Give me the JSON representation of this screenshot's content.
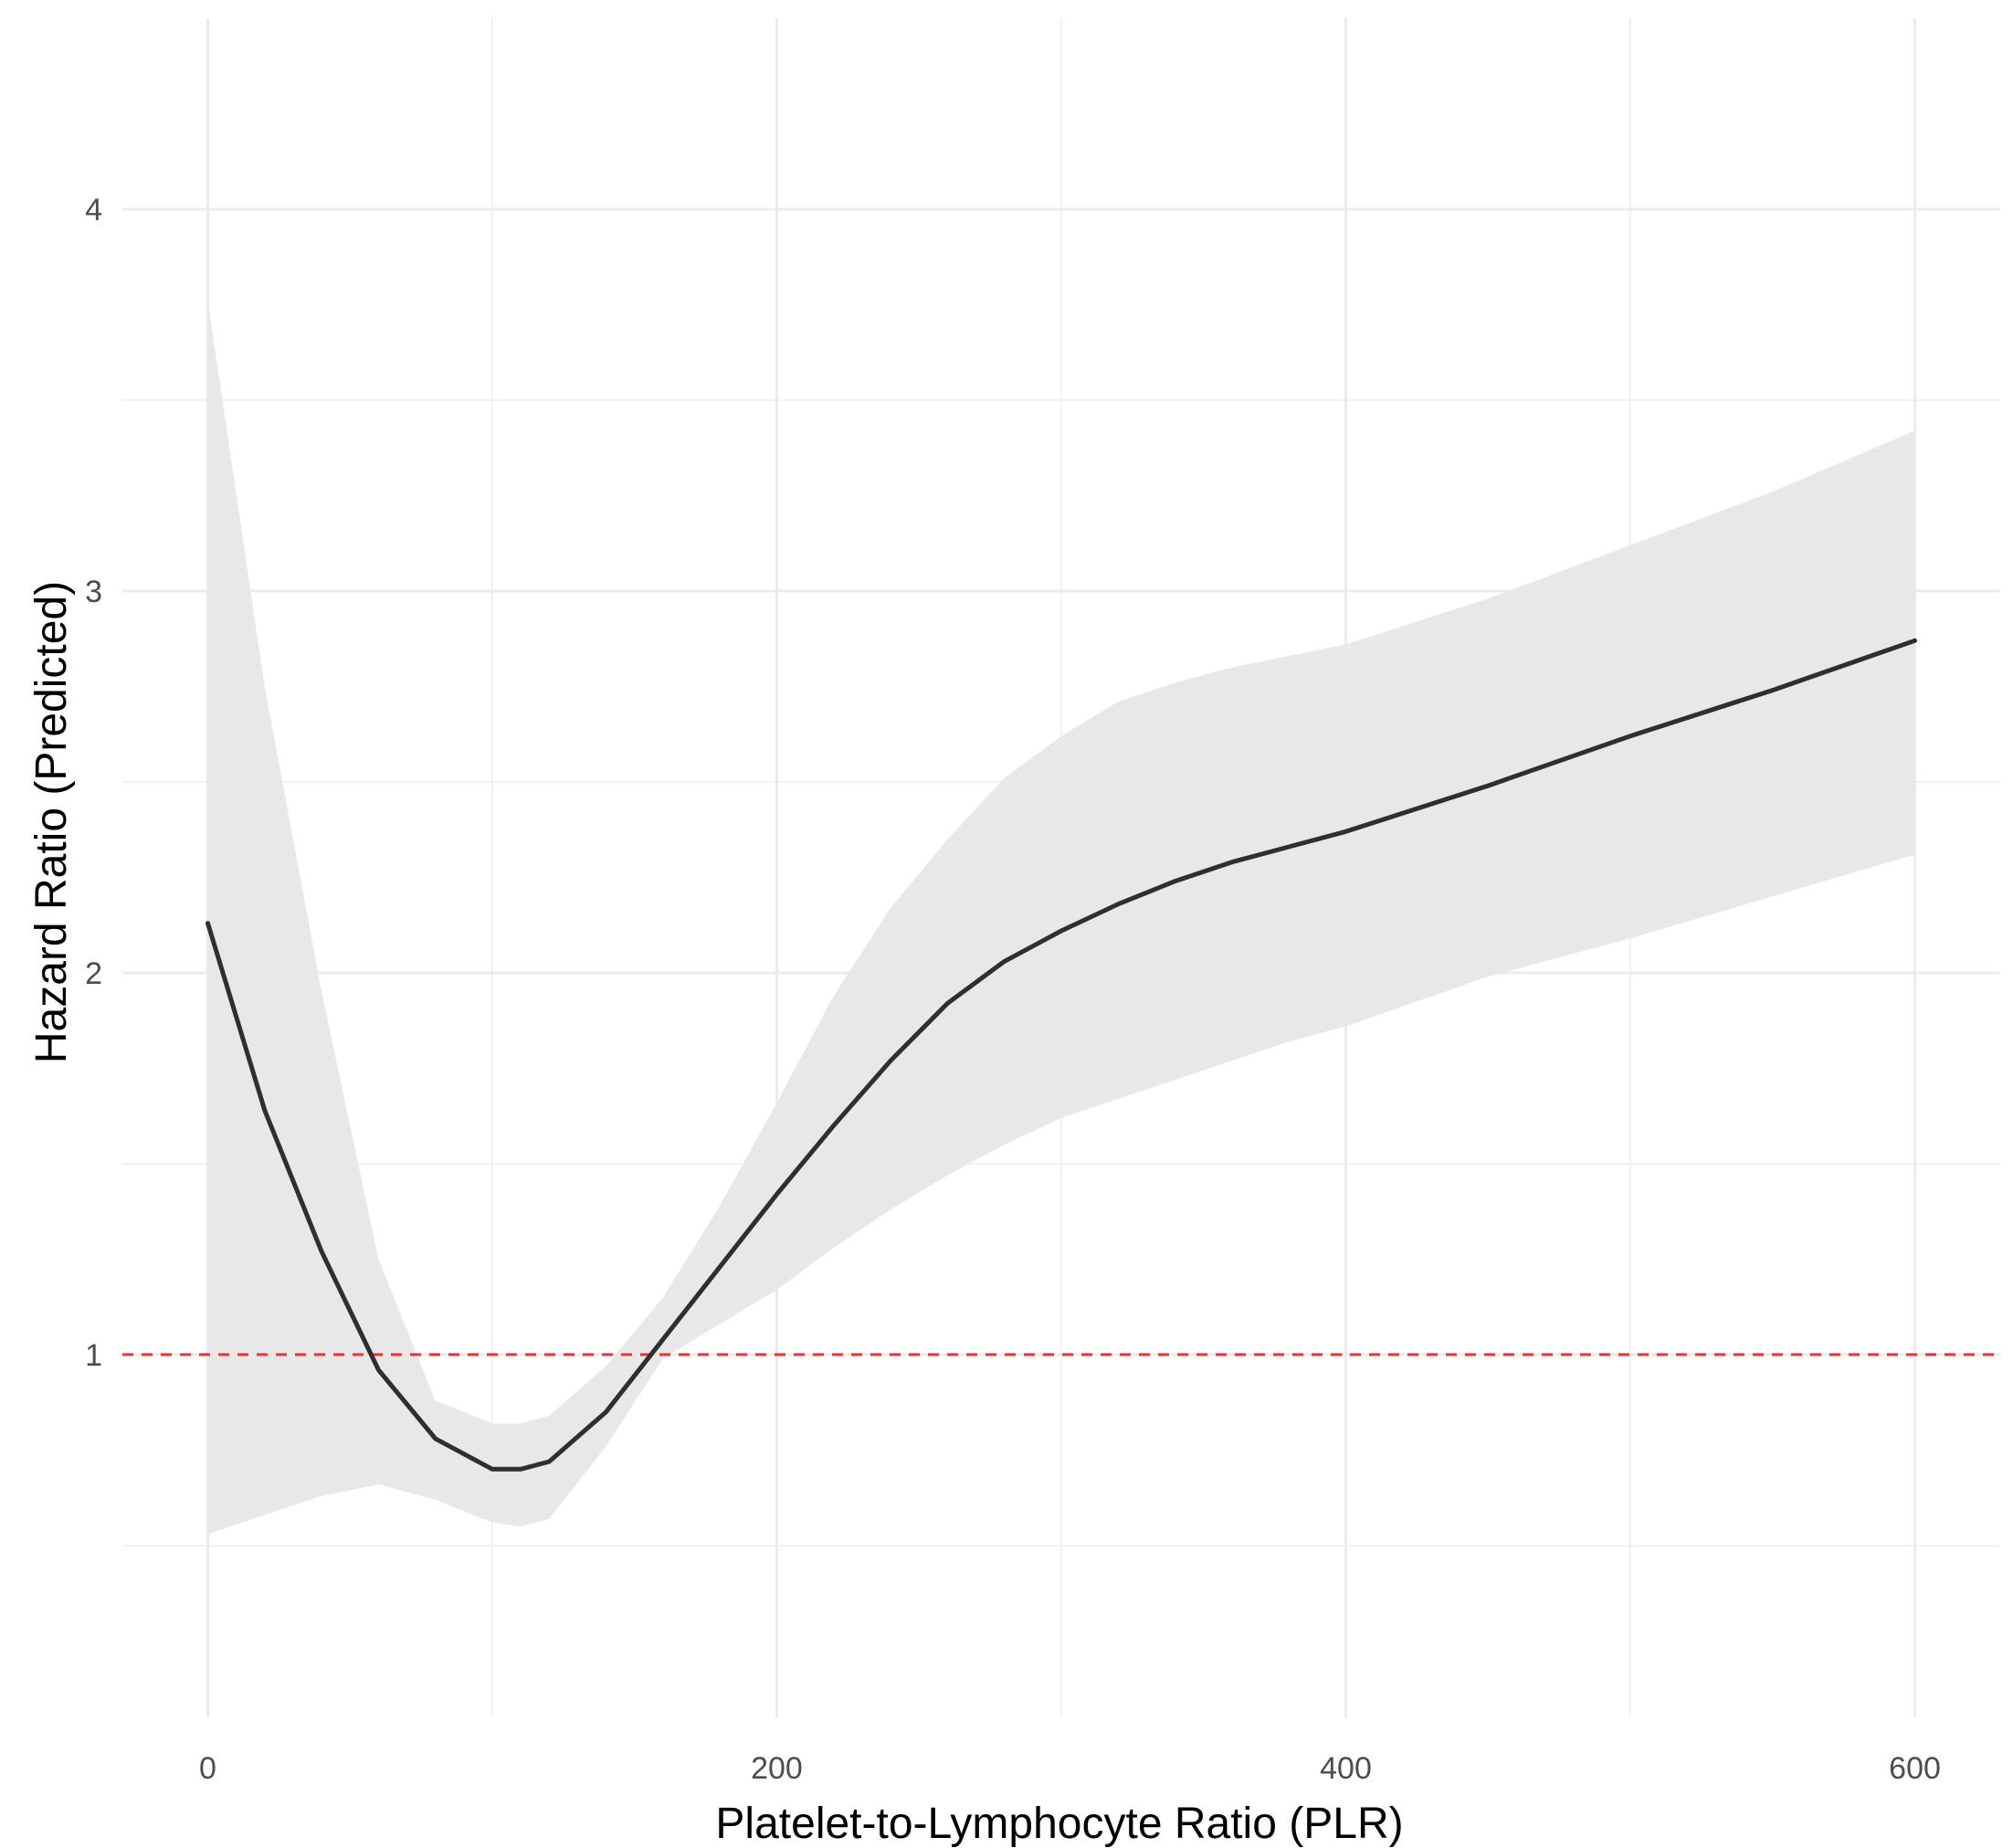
{
  "chart_data": {
    "type": "line",
    "title": "",
    "xlabel": "Platelet-to-Lymphocyte Ratio (PLR)",
    "ylabel": "Hazard Ratio (Predicted)",
    "xlim": [
      -30,
      630
    ],
    "ylim": [
      0.05,
      4.5
    ],
    "x_ticks": [
      0,
      200,
      400,
      600
    ],
    "x_tick_labels": [
      "0",
      "200",
      "400",
      "600"
    ],
    "x_minor_ticks": [
      100,
      300,
      500
    ],
    "y_ticks": [
      1,
      2,
      3,
      4
    ],
    "y_tick_labels": [
      "1",
      "2",
      "3",
      "4"
    ],
    "y_minor_ticks": [
      0.5,
      1.5,
      2.5,
      3.5
    ],
    "grid": true,
    "reference_line": {
      "y": 1,
      "style": "dashed",
      "color": "#ff2b2b"
    },
    "series": [
      {
        "type": "line",
        "color": "#2f2f2f",
        "x": [
          0,
          20,
          40,
          60,
          80,
          100,
          110,
          120,
          140,
          160,
          180,
          200,
          220,
          240,
          260,
          280,
          300,
          320,
          340,
          360,
          380,
          400,
          450,
          500,
          550,
          600
        ],
        "y": [
          2.13,
          1.64,
          1.27,
          0.96,
          0.78,
          0.7,
          0.7,
          0.72,
          0.85,
          1.04,
          1.23,
          1.42,
          1.6,
          1.77,
          1.92,
          2.03,
          2.11,
          2.18,
          2.24,
          2.29,
          2.33,
          2.37,
          2.49,
          2.62,
          2.74,
          2.87
        ]
      }
    ],
    "confidence_band": {
      "color": "#e8e8e8",
      "x": [
        0,
        20,
        40,
        60,
        80,
        100,
        110,
        120,
        140,
        160,
        180,
        200,
        220,
        240,
        260,
        280,
        300,
        320,
        340,
        360,
        380,
        400,
        450,
        500,
        550,
        600
      ],
      "lower": [
        0.53,
        0.58,
        0.63,
        0.66,
        0.62,
        0.56,
        0.55,
        0.57,
        0.76,
        0.99,
        1.08,
        1.17,
        1.28,
        1.38,
        1.47,
        1.55,
        1.62,
        1.67,
        1.72,
        1.77,
        1.82,
        1.86,
        1.99,
        2.09,
        2.2,
        2.31
      ],
      "upper": [
        3.76,
        2.75,
        1.95,
        1.25,
        0.88,
        0.82,
        0.82,
        0.84,
        0.97,
        1.15,
        1.39,
        1.66,
        1.94,
        2.17,
        2.35,
        2.51,
        2.62,
        2.71,
        2.76,
        2.8,
        2.83,
        2.86,
        2.98,
        3.12,
        3.26,
        3.42
      ]
    }
  }
}
